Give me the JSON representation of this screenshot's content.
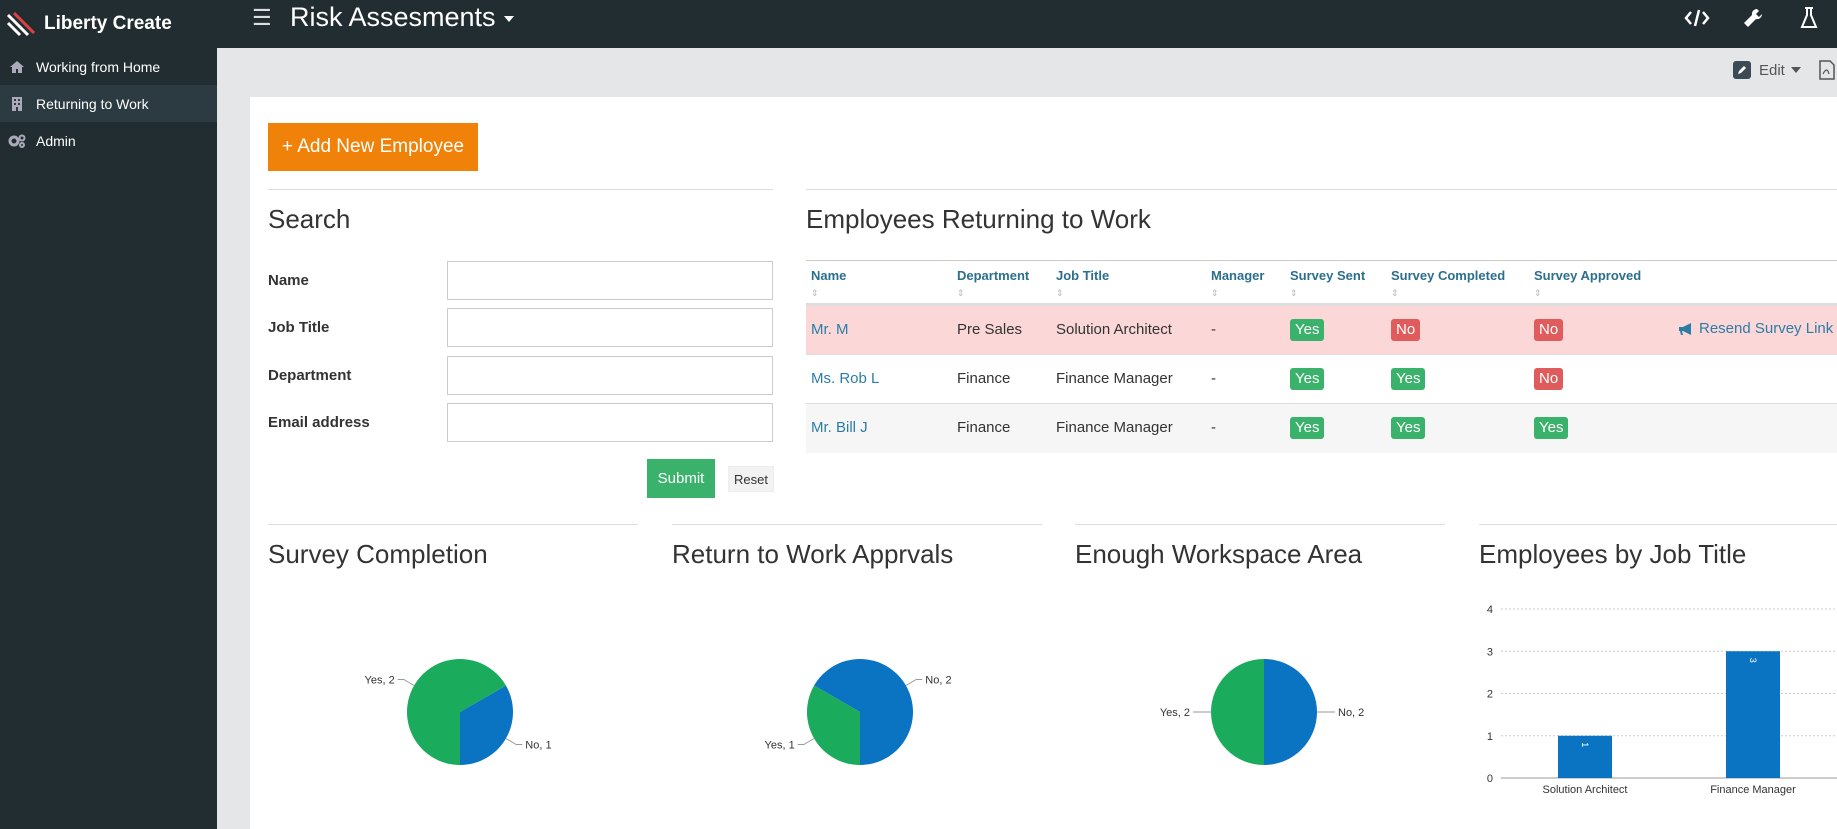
{
  "app": {
    "name": "Liberty Create",
    "page_title": "Risk Assesments",
    "menu_icon": "hamburger-icon",
    "top_icons": [
      "code-icon",
      "wrench-icon",
      "flask-icon"
    ]
  },
  "sidebar": {
    "items": [
      {
        "label": "Working from Home",
        "icon": "home-icon"
      },
      {
        "label": "Returning to Work",
        "icon": "building-icon",
        "active": true
      },
      {
        "label": "Admin",
        "icon": "gears-icon"
      }
    ]
  },
  "toolbar": {
    "edit_label": "Edit"
  },
  "actions": {
    "add_employee_label": "+ Add New Employee"
  },
  "search": {
    "title": "Search",
    "fields": [
      {
        "label": "Name",
        "value": ""
      },
      {
        "label": "Job Title",
        "value": ""
      },
      {
        "label": "Department",
        "value": ""
      },
      {
        "label": "Email address",
        "value": ""
      }
    ],
    "submit_label": "Submit",
    "reset_label": "Reset"
  },
  "employees": {
    "title": "Employees Returning to Work",
    "columns": [
      "Name",
      "Department",
      "Job Title",
      "Manager",
      "Survey Sent",
      "Survey Completed",
      "Survey Approved"
    ],
    "rows": [
      {
        "name": "Mr. M",
        "department": "Pre Sales",
        "job_title": "Solution Architect",
        "manager": "-",
        "survey_sent": "Yes",
        "survey_completed": "No",
        "survey_approved": "No",
        "action": "Resend Survey Link"
      },
      {
        "name": "Ms. Rob L",
        "department": "Finance",
        "job_title": "Finance Manager",
        "manager": "-",
        "survey_sent": "Yes",
        "survey_completed": "Yes",
        "survey_approved": "No",
        "action": ""
      },
      {
        "name": "Mr. Bill J",
        "department": "Finance",
        "job_title": "Finance Manager",
        "manager": "-",
        "survey_sent": "Yes",
        "survey_completed": "Yes",
        "survey_approved": "Yes",
        "action": ""
      }
    ]
  },
  "charts": {
    "survey_completion_title": "Survey Completion",
    "return_approvals_title": "Return to Work Apprvals",
    "workspace_title": "Enough Workspace Area",
    "job_title_title": "Employees by Job Title"
  },
  "colors": {
    "blue": "#0a73c2",
    "green": "#1aab5d",
    "orange": "#f0820a",
    "sidebar": "#222d32"
  },
  "chart_data": [
    {
      "type": "pie",
      "title": "Survey Completion",
      "slices": [
        {
          "label": "No",
          "value": 1,
          "display": "No, 1"
        },
        {
          "label": "Yes",
          "value": 2,
          "display": "Yes, 2"
        }
      ]
    },
    {
      "type": "pie",
      "title": "Return to Work Apprvals",
      "slices": [
        {
          "label": "No",
          "value": 2,
          "display": "No, 2"
        },
        {
          "label": "Yes",
          "value": 1,
          "display": "Yes, 1"
        }
      ]
    },
    {
      "type": "pie",
      "title": "Enough Workspace Area",
      "slices": [
        {
          "label": "No",
          "value": 2,
          "display": "No, 2"
        },
        {
          "label": "Yes",
          "value": 2,
          "display": "Yes, 2"
        }
      ]
    },
    {
      "type": "bar",
      "title": "Employees by Job Title",
      "categories": [
        "Solution Architect",
        "Finance Manager"
      ],
      "values": [
        1,
        3
      ],
      "ylim": [
        0,
        4
      ],
      "yticks": [
        "0",
        "1",
        "2",
        "3",
        "4"
      ],
      "grid": true
    }
  ]
}
